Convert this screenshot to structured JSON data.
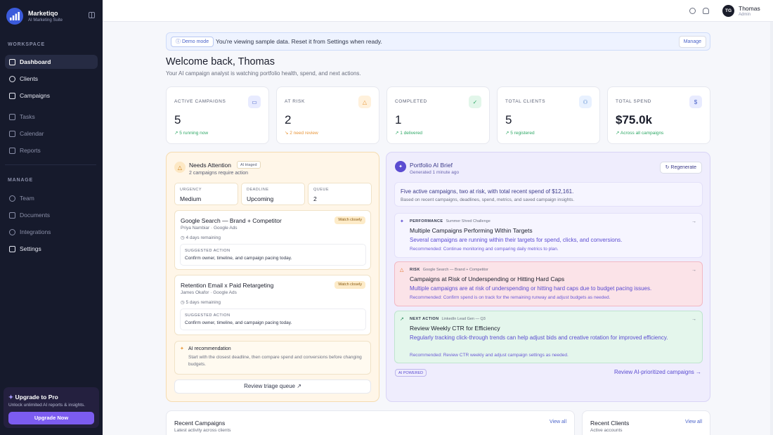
{
  "brand": {
    "name": "Marketiqo",
    "subtitle": "AI Marketing Suite"
  },
  "sidebar": {
    "workspace_label": "WORKSPACE",
    "manage_label": "MANAGE",
    "items": [
      {
        "label": "Dashboard",
        "icon": "grid-icon"
      },
      {
        "label": "Clients",
        "icon": "users-icon"
      },
      {
        "label": "Campaigns",
        "icon": "megaphone-icon"
      },
      {
        "label": "Tasks",
        "icon": "checklist-icon"
      },
      {
        "label": "Calendar",
        "icon": "calendar-icon"
      },
      {
        "label": "Reports",
        "icon": "bar-chart-icon"
      }
    ],
    "manage_items": [
      {
        "label": "Team",
        "icon": "team-icon"
      },
      {
        "label": "Documents",
        "icon": "document-icon"
      },
      {
        "label": "Integrations",
        "icon": "plug-icon"
      },
      {
        "label": "Settings",
        "icon": "sliders-icon"
      }
    ],
    "upgrade": {
      "title": "Upgrade to Pro",
      "subtitle": "Unlock unlimited AI reports & insights.",
      "button": "Upgrade Now"
    }
  },
  "topbar": {
    "user": {
      "initials": "TG",
      "name": "Thomas",
      "role": "Admin"
    }
  },
  "banner": {
    "badge": "Demo mode",
    "text": "You're viewing sample data. Reset it from Settings when ready.",
    "button": "Manage"
  },
  "welcome": {
    "title": "Welcome back, Thomas",
    "subtitle": "Your AI campaign analyst is watching portfolio health, spend, and next actions."
  },
  "stats": [
    {
      "label": "ACTIVE CAMPAIGNS",
      "value": "5",
      "note": "↗ 5 running now",
      "icon": "chat-icon",
      "color": "#e8ebff"
    },
    {
      "label": "AT RISK",
      "value": "2",
      "note": "↘ 2 need review",
      "icon": "warning-icon",
      "color": "#fff1dc"
    },
    {
      "label": "COMPLETED",
      "value": "1",
      "note": "↗ 1 delivered",
      "icon": "check-circle-icon",
      "color": "#e2f6ea"
    },
    {
      "label": "TOTAL CLIENTS",
      "value": "5",
      "note": "↗ 5 registered",
      "icon": "users-icon",
      "color": "#e8f1ff"
    },
    {
      "label": "TOTAL SPEND",
      "value": "$75.0k",
      "note": "↗ Across all campaigns",
      "icon": "dollar-icon",
      "color": "#e8ebff"
    }
  ],
  "attention": {
    "title": "Needs Attention",
    "badge": "AI triaged",
    "subtitle": "2 campaigns require action",
    "chips": [
      {
        "label": "URGENCY",
        "value": "Medium"
      },
      {
        "label": "DEADLINE",
        "value": "Upcoming"
      },
      {
        "label": "QUEUE",
        "value": "2"
      }
    ],
    "tasks": [
      {
        "title": "Google Search — Brand + Competitor",
        "badge": "Watch closely",
        "meta": "Priya Nambiar · Google Ads",
        "due": "4 days remaining",
        "sugg_label": "SUGGESTED ACTION",
        "sugg_text": "Confirm owner, timeline, and campaign pacing today."
      },
      {
        "title": "Retention Email x Paid Retargeting",
        "badge": "Watch closely",
        "meta": "James Okafor · Google Ads",
        "due": "5 days remaining",
        "sugg_label": "SUGGESTED ACTION",
        "sugg_text": "Confirm owner, timeline, and campaign pacing today."
      }
    ],
    "recommendation": {
      "title": "AI recommendation",
      "text": "Start with the closest deadline, then compare spend and conversions before changing budgets."
    },
    "review_button": "Review triage queue ↗"
  },
  "brief": {
    "title": "Portfolio AI Brief",
    "subtitle": "Generated 1 minute ago",
    "regen": "Regenerate",
    "summary": "Five active campaigns, two at risk, with total recent spend of $12,161.",
    "summary_sub": "Based on recent campaigns, deadlines, spend, metrics, and saved campaign insights.",
    "insights": [
      {
        "kind": "PERFORMANCE",
        "context": "Summer Shred Challenge",
        "title": "Multiple Campaigns Performing Within Targets",
        "text": "Several campaigns are running within their targets for spend, clicks, and conversions.",
        "rec": "Recommended: Continue monitoring and comparing daily metrics to plan."
      },
      {
        "kind": "RISK",
        "context": "Google Search — Brand + Competitor",
        "title": "Campaigns at Risk of Underspending or Hitting Hard Caps",
        "text": "Multiple campaigns are at risk of underspending or hitting hard caps due to budget pacing issues.",
        "rec": "Recommended: Confirm spend is on track for the remaining runway and adjust budgets as needed."
      },
      {
        "kind": "NEXT ACTION",
        "context": "LinkedIn Lead Gen — Q3",
        "title": "Review Weekly CTR for Efficiency",
        "text": "Regularly tracking click-through trends can help adjust bids and creative rotation for improved efficiency.",
        "rec": "Recommended: Review CTR weekly and adjust campaign settings as needed."
      }
    ],
    "ai_badge": "AI POWERED",
    "link": "Review AI-prioritized campaigns →"
  },
  "recent_campaigns": {
    "title": "Recent Campaigns",
    "subtitle": "Latest activity across clients",
    "link": "View all"
  },
  "recent_clients": {
    "title": "Recent Clients",
    "subtitle": "Active accounts",
    "link": "View all"
  }
}
